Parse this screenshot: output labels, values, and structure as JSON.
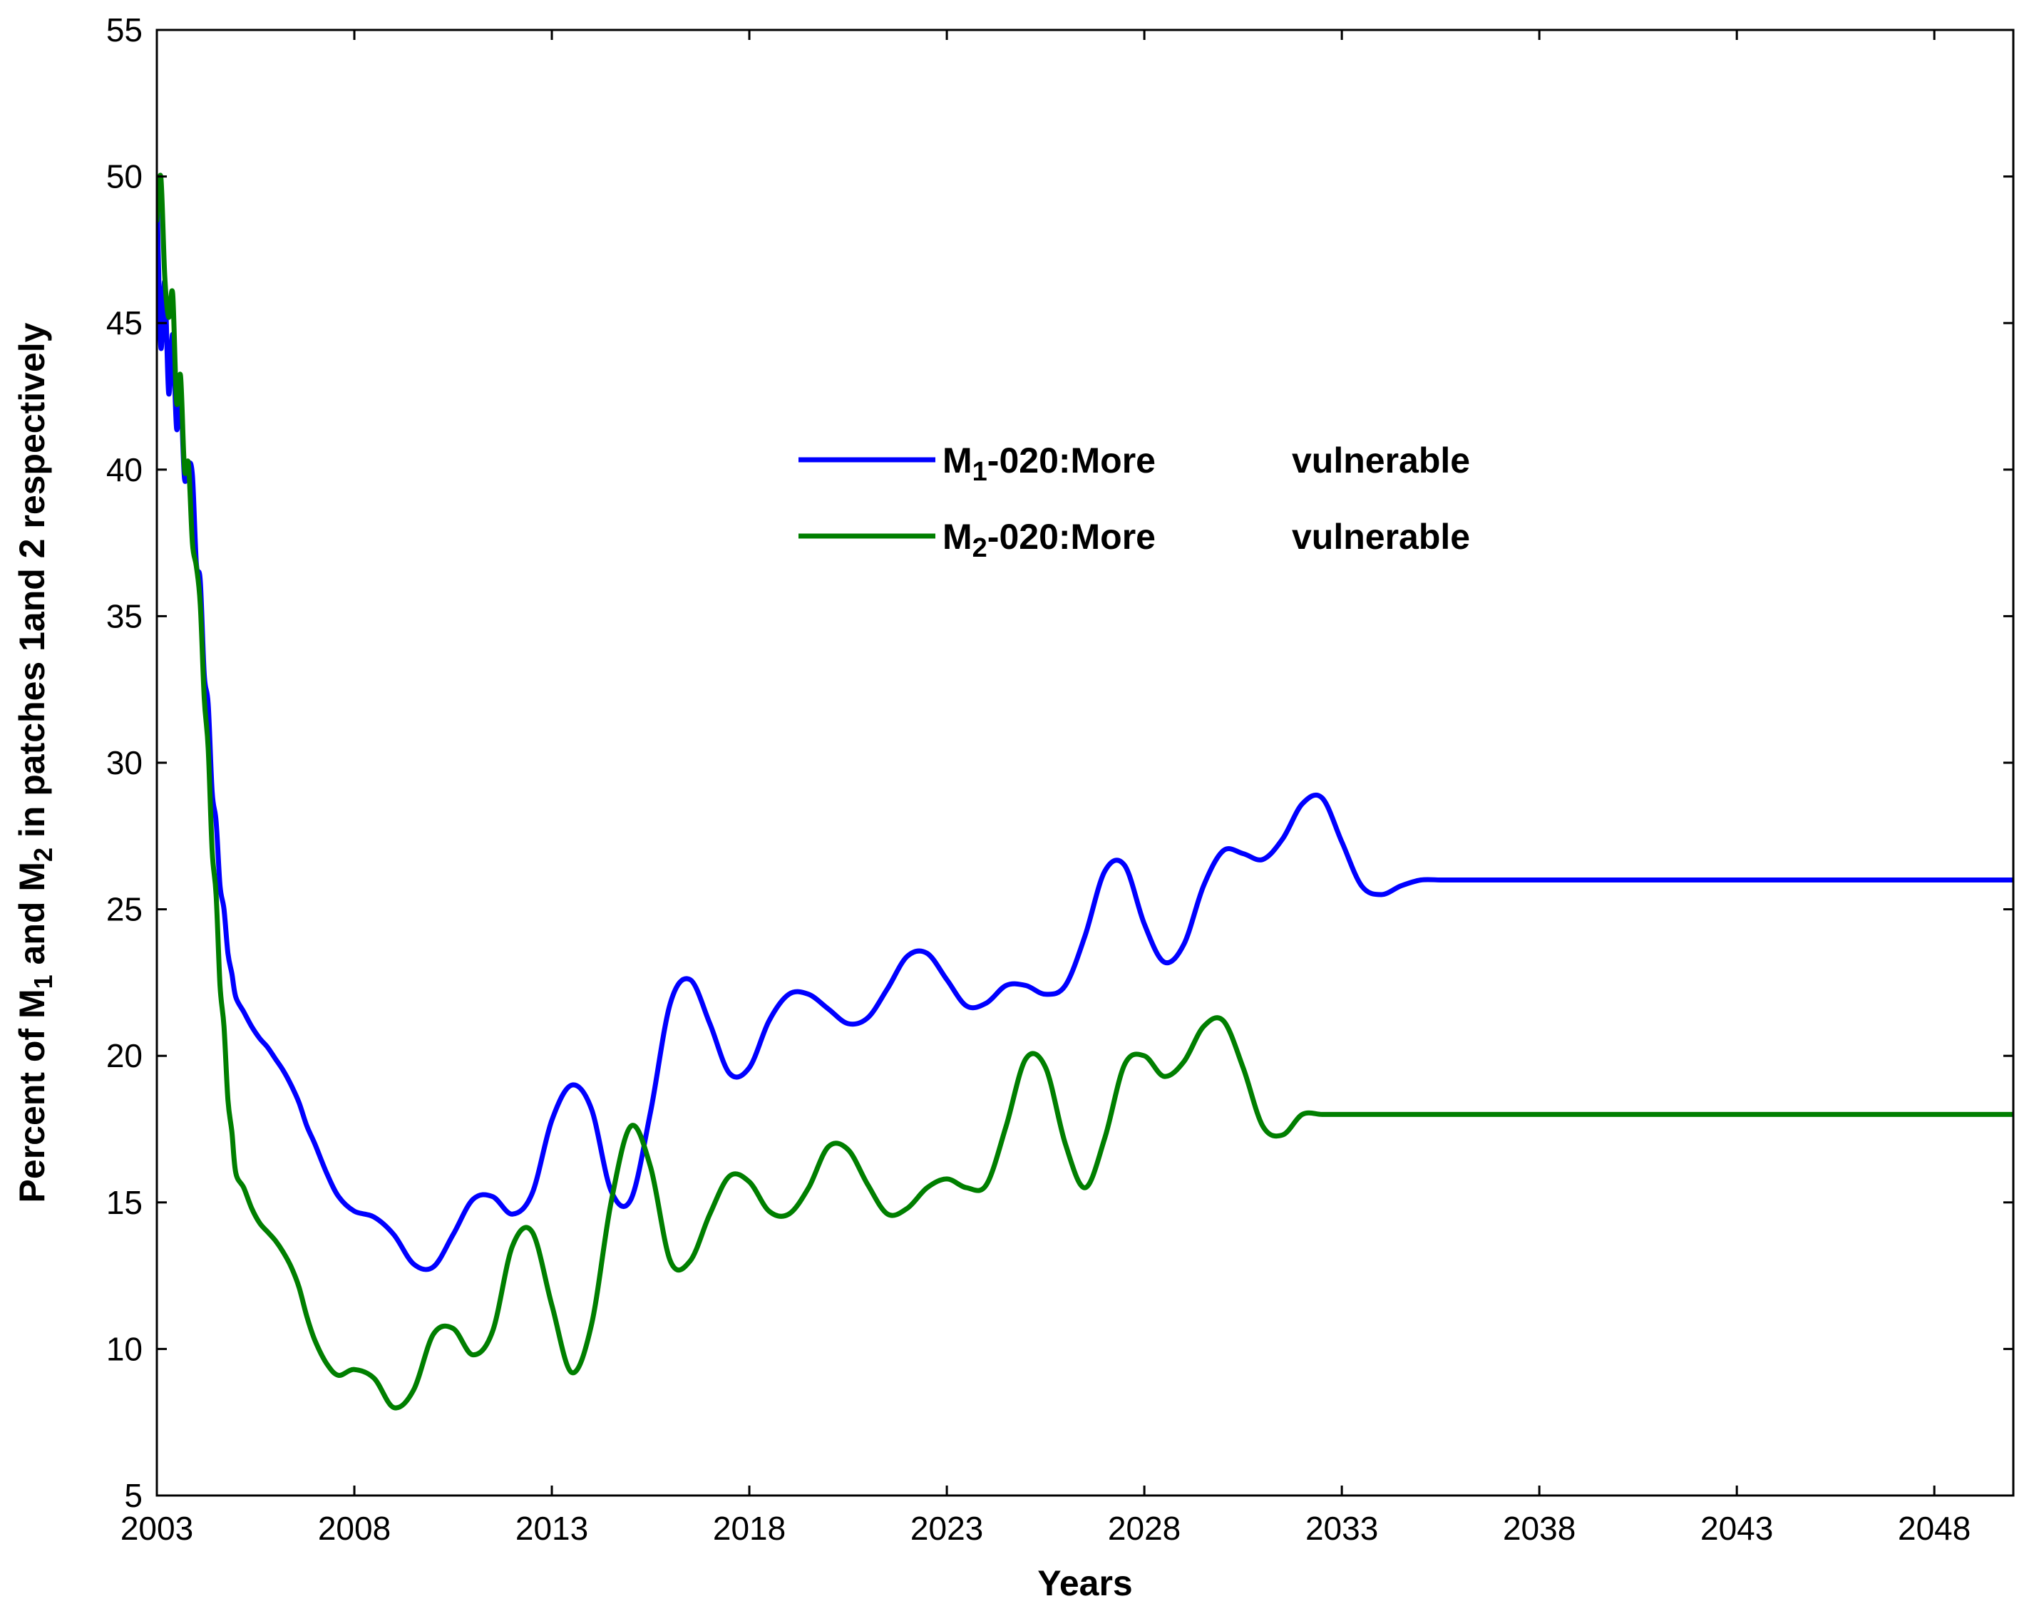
{
  "chart_data": {
    "type": "line",
    "title": "",
    "xlabel": "Years",
    "ylabel": {
      "parts": [
        "Percent of M",
        "1",
        " and M",
        "2",
        " in patches 1and 2 respectively"
      ]
    },
    "xlim": [
      2003,
      2050
    ],
    "ylim": [
      5,
      55
    ],
    "xticks": [
      2003,
      2008,
      2013,
      2018,
      2023,
      2028,
      2033,
      2038,
      2043,
      2048
    ],
    "yticks": [
      5,
      10,
      15,
      20,
      25,
      30,
      35,
      40,
      45,
      50,
      55
    ],
    "grid": false,
    "legend_position": "upper-center",
    "series": [
      {
        "name": "M1-020:More vulnerable",
        "legend": {
          "base": "M",
          "sub": "1",
          "rest": "-020:More",
          "gap_word": "vulnerable"
        },
        "color": "#0000ff",
        "x": [
          2003.0,
          2003.1,
          2003.2,
          2003.3,
          2003.4,
          2003.5,
          2003.6,
          2003.7,
          2003.8,
          2003.9,
          2004.0,
          2004.1,
          2004.2,
          2004.3,
          2004.4,
          2004.5,
          2004.6,
          2004.7,
          2004.8,
          2004.9,
          2005.0,
          2005.2,
          2005.4,
          2005.6,
          2005.8,
          2006.0,
          2006.2,
          2006.4,
          2006.6,
          2006.8,
          2007.0,
          2007.3,
          2007.6,
          2008.0,
          2008.5,
          2009.0,
          2009.5,
          2010.0,
          2010.5,
          2011.0,
          2011.5,
          2012.0,
          2012.5,
          2013.0,
          2013.5,
          2014.0,
          2014.5,
          2015.0,
          2015.5,
          2016.0,
          2016.5,
          2017.0,
          2017.5,
          2018.0,
          2018.5,
          2019.0,
          2019.5,
          2020.0,
          2020.5,
          2021.0,
          2021.5,
          2022.0,
          2022.5,
          2023.0,
          2023.5,
          2024.0,
          2024.5,
          2025.0,
          2025.5,
          2026.0,
          2026.5,
          2027.0,
          2027.5,
          2028.0,
          2028.5,
          2029.0,
          2029.5,
          2030.0,
          2030.5,
          2031.0,
          2031.5,
          2032.0,
          2032.5,
          2033.0,
          2033.5,
          2034.0,
          2034.5,
          2035.0,
          2035.5,
          2036.0,
          2036.5,
          2037.0,
          2037.5,
          2038.0,
          2038.5,
          2039.0,
          2039.5,
          2040.0,
          2040.5,
          2041.0,
          2041.5,
          2042.0,
          2042.5,
          2043.0,
          2043.5,
          2044.0,
          2044.5,
          2045.0,
          2045.5,
          2046.0,
          2046.5,
          2047.0,
          2047.5,
          2048.0,
          2048.5,
          2049.0,
          2049.5,
          2050.0
        ],
        "y": [
          49.8,
          44.2,
          46.4,
          42.6,
          44.6,
          41.4,
          42.6,
          39.7,
          40.2,
          39.8,
          36.8,
          36.2,
          33.0,
          32.0,
          29.0,
          28.0,
          25.8,
          25.0,
          23.5,
          22.8,
          22.0,
          21.5,
          21.0,
          20.6,
          20.3,
          19.9,
          19.5,
          19.0,
          18.4,
          17.6,
          17.0,
          16.0,
          15.2,
          14.7,
          14.5,
          13.9,
          12.9,
          12.8,
          13.9,
          15.1,
          15.2,
          14.6,
          15.3,
          17.8,
          19.0,
          18.2,
          15.4,
          15.1,
          18.1,
          21.8,
          22.6,
          21.1,
          19.4,
          19.6,
          21.2,
          22.1,
          22.1,
          21.6,
          21.1,
          21.3,
          22.3,
          23.4,
          23.5,
          22.6,
          21.7,
          21.8,
          22.4,
          22.4,
          22.1,
          22.4,
          24.1,
          26.3,
          26.5,
          24.5,
          23.2,
          23.8,
          25.8,
          27.0,
          26.9,
          26.7,
          27.4,
          28.6,
          28.8,
          27.3,
          25.8,
          25.5,
          25.8,
          26.0,
          26.0,
          26.0,
          26.0,
          26.0,
          26.0,
          26.0,
          26.0,
          26.0,
          26.0,
          26.0,
          26.0,
          26.0,
          26.0,
          26.0,
          26.0,
          26.0,
          26.0,
          26.0,
          26.0,
          26.0,
          26.0,
          26.0,
          26.0,
          26.0,
          26.0,
          26.0,
          26.0,
          26.0,
          26.0,
          26.0
        ]
      },
      {
        "name": "M2-020:More vulnerable",
        "legend": {
          "base": "M",
          "sub": "2",
          "rest": "-020:More",
          "gap_word": "vulnerable"
        },
        "color": "#007f00",
        "x": [
          2003.0,
          2003.1,
          2003.2,
          2003.3,
          2003.4,
          2003.5,
          2003.6,
          2003.7,
          2003.8,
          2003.9,
          2004.0,
          2004.1,
          2004.2,
          2004.3,
          2004.4,
          2004.5,
          2004.6,
          2004.7,
          2004.8,
          2004.9,
          2005.0,
          2005.2,
          2005.4,
          2005.6,
          2005.8,
          2006.0,
          2006.2,
          2006.4,
          2006.6,
          2006.8,
          2007.0,
          2007.3,
          2007.6,
          2008.0,
          2008.5,
          2009.0,
          2009.5,
          2010.0,
          2010.5,
          2011.0,
          2011.5,
          2012.0,
          2012.5,
          2013.0,
          2013.5,
          2014.0,
          2014.5,
          2015.0,
          2015.5,
          2016.0,
          2016.5,
          2017.0,
          2017.5,
          2018.0,
          2018.5,
          2019.0,
          2019.5,
          2020.0,
          2020.5,
          2021.0,
          2021.5,
          2022.0,
          2022.5,
          2023.0,
          2023.5,
          2024.0,
          2024.5,
          2025.0,
          2025.5,
          2026.0,
          2026.5,
          2027.0,
          2027.5,
          2028.0,
          2028.5,
          2029.0,
          2029.5,
          2030.0,
          2030.5,
          2031.0,
          2031.5,
          2032.0,
          2032.5,
          2033.0,
          2033.5,
          2034.0,
          2034.5,
          2035.0,
          2035.5,
          2036.0,
          2036.5,
          2037.0,
          2037.5,
          2038.0,
          2038.5,
          2039.0,
          2039.5,
          2040.0,
          2040.5,
          2041.0,
          2041.5,
          2042.0,
          2042.5,
          2043.0,
          2043.5,
          2044.0,
          2044.5,
          2045.0,
          2045.5,
          2046.0,
          2046.5,
          2047.0,
          2047.5,
          2048.0,
          2048.5,
          2049.0,
          2049.5,
          2050.0
        ],
        "y": [
          48.5,
          50.0,
          46.6,
          45.2,
          46.0,
          42.3,
          43.2,
          40.0,
          40.2,
          37.5,
          36.7,
          35.4,
          32.2,
          30.5,
          27.0,
          25.5,
          22.4,
          21.0,
          18.5,
          17.4,
          16.0,
          15.5,
          14.8,
          14.3,
          14.0,
          13.7,
          13.3,
          12.8,
          12.1,
          11.1,
          10.3,
          9.5,
          9.1,
          9.3,
          9.0,
          8.0,
          8.6,
          10.5,
          10.7,
          9.8,
          10.6,
          13.5,
          14.0,
          11.5,
          9.2,
          10.8,
          15.0,
          17.6,
          16.2,
          13.0,
          13.0,
          14.6,
          15.9,
          15.7,
          14.7,
          14.6,
          15.5,
          16.9,
          16.8,
          15.6,
          14.6,
          14.8,
          15.5,
          15.8,
          15.5,
          15.6,
          17.6,
          19.9,
          19.6,
          17.0,
          15.5,
          17.2,
          19.7,
          20.0,
          19.3,
          19.8,
          21.0,
          21.2,
          19.6,
          17.6,
          17.3,
          18.0,
          18.0,
          18.0,
          18.0,
          18.0,
          18.0,
          18.0,
          18.0,
          18.0,
          18.0,
          18.0,
          18.0,
          18.0,
          18.0,
          18.0,
          18.0,
          18.0,
          18.0,
          18.0,
          18.0,
          18.0,
          18.0,
          18.0,
          18.0,
          18.0,
          18.0,
          18.0,
          18.0,
          18.0,
          18.0,
          18.0,
          18.0,
          18.0,
          18.0,
          18.0,
          18.0,
          18.0
        ]
      }
    ]
  }
}
